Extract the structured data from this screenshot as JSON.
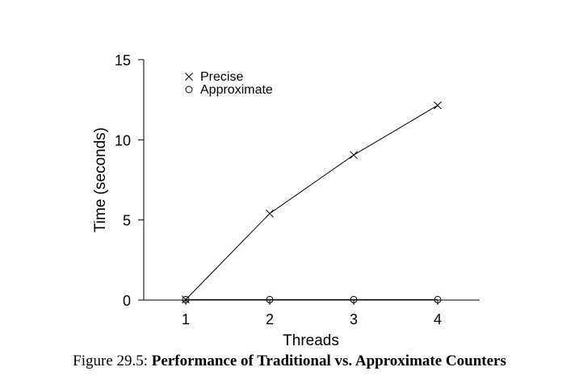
{
  "chart_data": {
    "type": "line",
    "x": [
      1,
      2,
      3,
      4
    ],
    "series": [
      {
        "name": "Precise",
        "marker": "x",
        "values": [
          0.03,
          5.4,
          9.05,
          12.15
        ]
      },
      {
        "name": "Approximate",
        "marker": "o",
        "values": [
          0.03,
          0.03,
          0.03,
          0.03
        ]
      }
    ],
    "xlabel": "Threads",
    "ylabel": "Time (seconds)",
    "xticks": [
      "1",
      "2",
      "3",
      "4"
    ],
    "yticks": [
      "0",
      "5",
      "10",
      "15"
    ],
    "ylim": [
      0,
      15
    ],
    "xlim": [
      0.5,
      4.5
    ],
    "grid": false,
    "legend_position": "top-left",
    "colors": {
      "line": "#000000",
      "background": "#ffffff"
    }
  },
  "caption": {
    "label": "Figure 29.5:",
    "title": "Performance of Traditional vs. Approximate Counters"
  }
}
